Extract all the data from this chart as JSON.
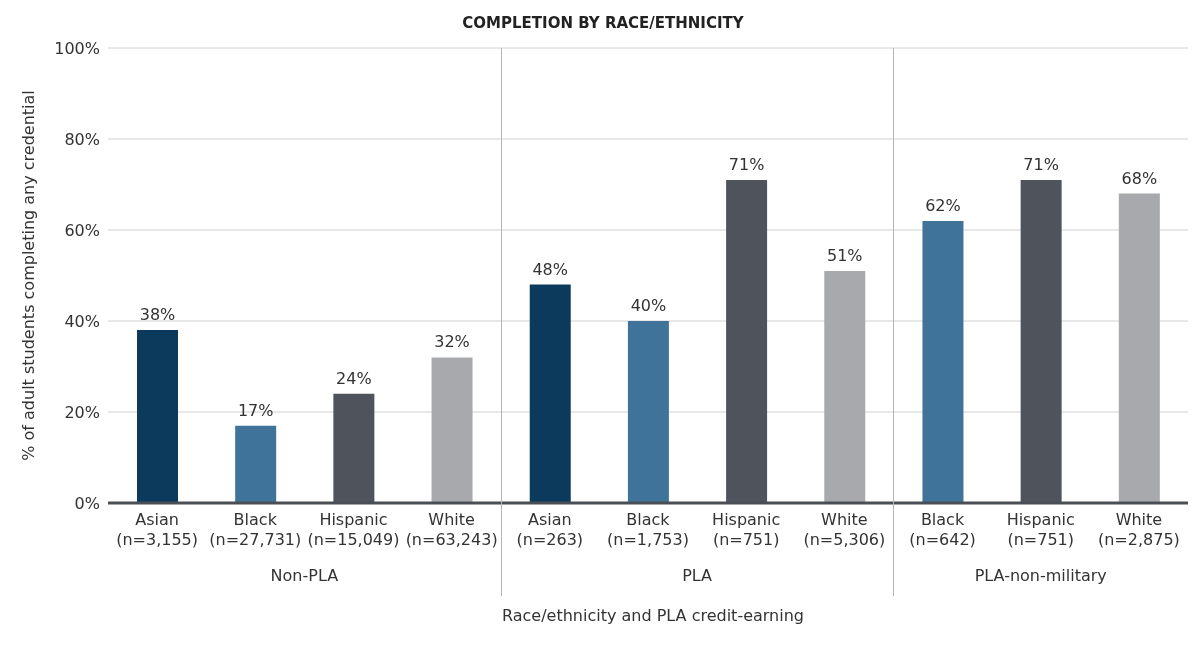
{
  "chart_data": {
    "type": "bar",
    "title": "COMPLETION BY RACE/ETHNICITY",
    "xlabel": "Race/ethnicity and PLA credit-earning",
    "ylabel": "% of adult students completing any credential",
    "categories": [
      "Asian\n(n=3,155)",
      "Black\n(n=27,731)",
      "Hispanic\n(n=15,049)",
      "White\n(n=63,243)",
      "Asian\n(n=263)",
      "Black\n(n=1,753)",
      "Hispanic\n(n=751)",
      "White\n(n=5,306)",
      "Black\n(n=642)",
      "Hispanic\n(n=751)",
      "White\n(n=2,875)"
    ],
    "values": [
      38,
      17,
      24,
      32,
      48,
      40,
      71,
      51,
      62,
      71,
      68
    ],
    "value_labels": [
      "38%",
      "17%",
      "24%",
      "32%",
      "48%",
      "40%",
      "71%",
      "51%",
      "62%",
      "71%",
      "68%"
    ],
    "colors": [
      "#0b3a5d",
      "#3f7399",
      "#4f545c",
      "#a7a9ac",
      "#0b3a5d",
      "#3f7399",
      "#4f545c",
      "#a7a9ac",
      "#3f7399",
      "#4f545c",
      "#a7a9ac"
    ],
    "ylim": [
      0,
      100
    ],
    "yticks": [
      {
        "value": 0,
        "label": "0%"
      },
      {
        "value": 20,
        "label": "20%"
      },
      {
        "value": 40,
        "label": "40%"
      },
      {
        "value": 60,
        "label": "60%"
      },
      {
        "value": 80,
        "label": "80%"
      },
      {
        "value": 100,
        "label": "100%"
      }
    ],
    "grid": "y",
    "annotations": [
      "Non-PLA",
      "PLA",
      "PLA-non-military"
    ]
  }
}
